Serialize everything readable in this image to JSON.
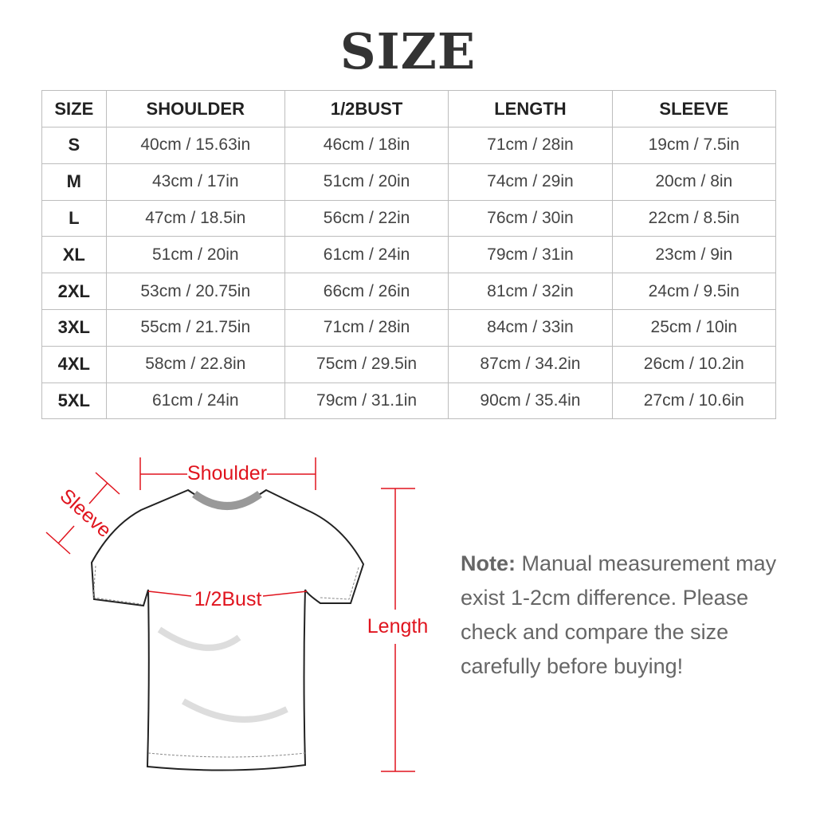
{
  "title": "SIZE",
  "table": {
    "headers": [
      "SIZE",
      "SHOULDER",
      "1/2BUST",
      "LENGTH",
      "SLEEVE"
    ],
    "rows": [
      [
        "S",
        "40cm / 15.63in",
        "46cm / 18in",
        "71cm / 28in",
        "19cm / 7.5in"
      ],
      [
        "M",
        "43cm / 17in",
        "51cm / 20in",
        "74cm / 29in",
        "20cm / 8in"
      ],
      [
        "L",
        "47cm / 18.5in",
        "56cm / 22in",
        "76cm / 30in",
        "22cm / 8.5in"
      ],
      [
        "XL",
        "51cm / 20in",
        "61cm / 24in",
        "79cm / 31in",
        "23cm / 9in"
      ],
      [
        "2XL",
        "53cm / 20.75in",
        "66cm / 26in",
        "81cm / 32in",
        "24cm / 9.5in"
      ],
      [
        "3XL",
        "55cm / 21.75in",
        "71cm / 28in",
        "84cm / 33in",
        "25cm / 10in"
      ],
      [
        "4XL",
        "58cm / 22.8in",
        "75cm / 29.5in",
        "87cm / 34.2in",
        "26cm / 10.2in"
      ],
      [
        "5XL",
        "61cm / 24in",
        "79cm / 31.1in",
        "90cm / 35.4in",
        "27cm / 10.6in"
      ]
    ]
  },
  "diagram": {
    "shoulder": "Shoulder",
    "sleeve": "Sleeve",
    "bust": "1/2Bust",
    "length": "Length",
    "accent_color": "#e0141e"
  },
  "note": {
    "label": "Note:",
    "text": "Manual measurement may exist 1-2cm difference. Please check and compare the size carefully before buying!"
  }
}
